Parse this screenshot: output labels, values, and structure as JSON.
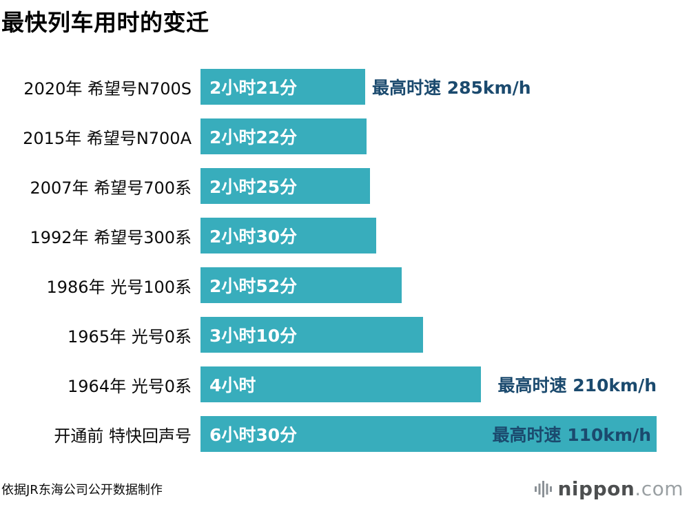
{
  "title": "最快列车用时的变迁",
  "source": "依据JR东海公司公开数据制作",
  "logo": {
    "brand": "nippon",
    "tld": ".com",
    "icon": "equalizer-bars-icon"
  },
  "chart_data": {
    "type": "bar",
    "orientation": "horizontal",
    "title": "最快列车用时的变迁",
    "unit": "minutes",
    "xlim": [
      0,
      390
    ],
    "grid": false,
    "legend": false,
    "bar_color": "#38adbc",
    "bar_label_color": "#ffffff",
    "annotation_color": "#1b4a6e",
    "rows": [
      {
        "label": "2020年 希望号N700S",
        "time_label": "2小时21分",
        "minutes": 141,
        "annotation": "最高时速 285km/h",
        "annotation_align": "after-bar"
      },
      {
        "label": "2015年 希望号N700A",
        "time_label": "2小时22分",
        "minutes": 142
      },
      {
        "label": "2007年 希望号700系",
        "time_label": "2小时25分",
        "minutes": 145
      },
      {
        "label": "1992年 希望号300系",
        "time_label": "2小时30分",
        "minutes": 150
      },
      {
        "label": "1986年 光号100系",
        "time_label": "2小时52分",
        "minutes": 172
      },
      {
        "label": "1965年 光号0系",
        "time_label": "3小时10分",
        "minutes": 190
      },
      {
        "label": "1964年 光号0系",
        "time_label": "4小时",
        "minutes": 240,
        "annotation": "最高时速 210km/h",
        "annotation_align": "right-edge",
        "annotation_inset": 0
      },
      {
        "label": "开通前 特快回声号",
        "time_label": "6小时30分",
        "minutes": 390,
        "annotation": "最高时速 110km/h",
        "annotation_align": "right-edge",
        "annotation_inset": 8
      }
    ]
  }
}
